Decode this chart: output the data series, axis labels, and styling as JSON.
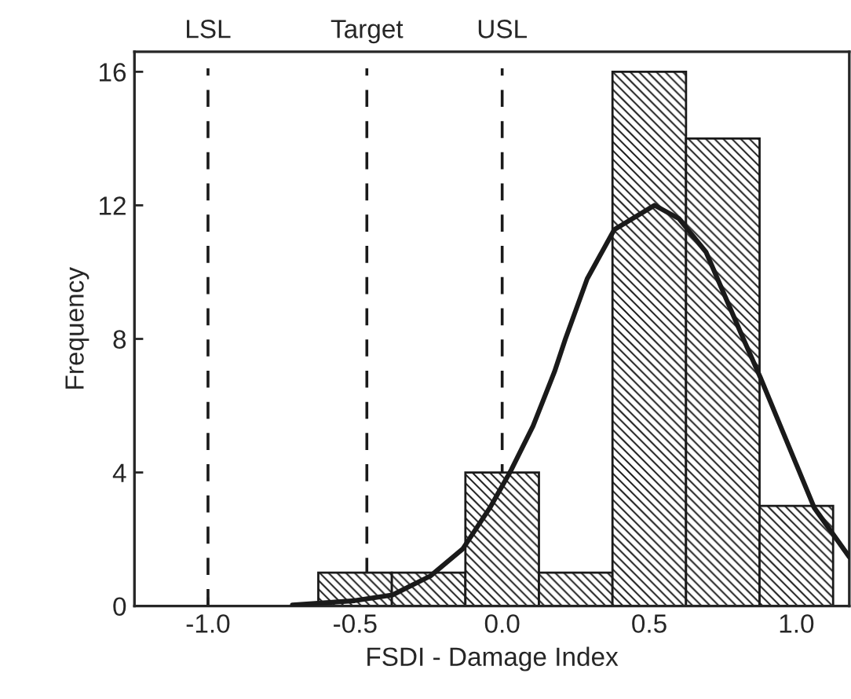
{
  "chart_data": {
    "type": "histogram",
    "xlabel": "FSDI - Damage Index",
    "ylabel": "Frequency",
    "bins": [
      -0.625,
      -0.375,
      -0.125,
      0.125,
      0.375,
      0.625,
      0.875,
      1.125
    ],
    "series": [
      {
        "color": "#1a1a1a",
        "values": [
          1,
          1,
          4,
          1,
          16,
          14,
          3
        ]
      },
      {
        "type": "line",
        "color": "#1a1a1a",
        "x": [
          -0.713,
          -0.502,
          -0.373,
          -0.244,
          -0.134,
          -0.042,
          0.031,
          0.105,
          0.178,
          0.215,
          0.289,
          0.381,
          0.518,
          0.601,
          0.693,
          0.82,
          0.877,
          0.969,
          1.061,
          1.18
        ],
        "values": [
          0.03,
          0.16,
          0.33,
          0.9,
          1.71,
          2.94,
          4.08,
          5.39,
          7.02,
          8.0,
          9.8,
          11.27,
          12.0,
          11.6,
          10.6,
          8.0,
          6.86,
          4.9,
          2.94,
          1.47
        ]
      }
    ],
    "xlim": [
      -1.25,
      1.18
    ],
    "xticks": [
      {
        "value": -1.0,
        "label": "-1.0"
      },
      {
        "value": -0.5,
        "label": "-0.5"
      },
      {
        "value": 0.0,
        "label": "0.0"
      },
      {
        "value": 0.5,
        "label": "0.5"
      },
      {
        "value": 1.0,
        "label": "1.0"
      }
    ],
    "ylim": [
      0,
      16.6
    ],
    "yticks": [
      0,
      4,
      8,
      12,
      16
    ],
    "ref_lines": [
      {
        "axis": "x",
        "value": -1.0,
        "label": "LSL",
        "color": "#1a1a1a",
        "line_style": "dashed"
      },
      {
        "axis": "x",
        "value": -0.46,
        "label": "Target",
        "color": "#1a1a1a",
        "line_style": "dashed"
      },
      {
        "axis": "x",
        "value": 0.0,
        "label": "USL",
        "color": "#1a1a1a",
        "line_style": "dashed"
      }
    ],
    "grid": false,
    "legend": false
  }
}
